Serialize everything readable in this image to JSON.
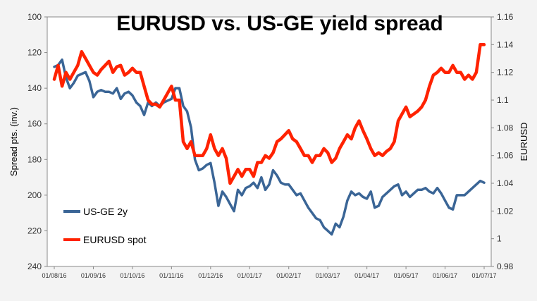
{
  "chart_data": {
    "type": "line",
    "title": "EURUSD vs. US-GE yield spread",
    "ylabel_left": "Spread pts. (inv.)",
    "ylabel_right": "EURUSD",
    "xlabel": "",
    "y_left_range": [
      100,
      240
    ],
    "y_left_inverted": true,
    "y_left_ticks": [
      "100",
      "120",
      "140",
      "160",
      "180",
      "200",
      "220",
      "240"
    ],
    "y_right_range": [
      0.98,
      1.16
    ],
    "y_right_ticks": [
      "0.98",
      "1",
      "1.02",
      "1.04",
      "1.06",
      "1.08",
      "1.1",
      "1.12",
      "1.14",
      "1.16"
    ],
    "x_ticks": [
      "01/08/16",
      "01/09/16",
      "01/10/16",
      "01/11/16",
      "01/12/16",
      "01/01/17",
      "01/02/17",
      "01/03/17",
      "01/04/17",
      "01/05/17",
      "01/06/17",
      "01/07/17"
    ],
    "grid": false,
    "legend_position": "bottom-left",
    "series": [
      {
        "name": "US-GE 2y",
        "axis": "left",
        "color": "#3a6596",
        "x": [
          0,
          0.1,
          0.2,
          0.3,
          0.4,
          0.5,
          0.6,
          0.7,
          0.8,
          0.9,
          1.0,
          1.1,
          1.2,
          1.3,
          1.4,
          1.5,
          1.6,
          1.7,
          1.8,
          1.9,
          2.0,
          2.1,
          2.2,
          2.3,
          2.4,
          2.5,
          2.6,
          2.7,
          2.8,
          2.9,
          3.0,
          3.1,
          3.2,
          3.3,
          3.4,
          3.5,
          3.6,
          3.7,
          3.8,
          3.9,
          4.0,
          4.1,
          4.2,
          4.3,
          4.4,
          4.5,
          4.6,
          4.7,
          4.8,
          4.9,
          5.0,
          5.1,
          5.2,
          5.3,
          5.4,
          5.5,
          5.6,
          5.7,
          5.8,
          5.9,
          6.0,
          6.1,
          6.2,
          6.3,
          6.4,
          6.5,
          6.6,
          6.7,
          6.8,
          6.9,
          7.0,
          7.1,
          7.2,
          7.3,
          7.4,
          7.5,
          7.6,
          7.7,
          7.8,
          7.9,
          8.0,
          8.1,
          8.2,
          8.3,
          8.4,
          8.5,
          8.6,
          8.7,
          8.8,
          8.9,
          9.0,
          9.1,
          9.2,
          9.3,
          9.4,
          9.5,
          9.6,
          9.7,
          9.8,
          9.9,
          10.0,
          10.1,
          10.2,
          10.3,
          10.4,
          10.5,
          10.6,
          10.7,
          10.8,
          10.9,
          11.0
        ],
        "values": [
          128,
          127,
          124,
          134,
          140,
          137,
          133,
          132,
          131,
          136,
          145,
          142,
          141,
          142,
          142,
          143,
          140,
          146,
          143,
          142,
          144,
          148,
          150,
          155,
          148,
          150,
          148,
          150,
          148,
          147,
          146,
          140,
          140,
          150,
          153,
          162,
          180,
          186,
          185,
          183,
          182,
          193,
          206,
          198,
          201,
          205,
          209,
          197,
          200,
          196,
          195,
          193,
          196,
          190,
          197,
          194,
          186,
          189,
          193,
          194,
          194,
          197,
          200,
          199,
          203,
          207,
          210,
          213,
          214,
          218,
          220,
          222,
          216,
          218,
          212,
          203,
          198,
          200,
          199,
          201,
          202,
          198,
          207,
          206,
          201,
          199,
          197,
          195,
          194,
          200,
          198,
          201,
          199,
          197,
          197,
          196,
          198,
          199,
          196,
          199,
          203,
          207,
          208,
          200,
          200,
          200,
          198,
          196,
          194,
          192,
          193
        ]
      },
      {
        "name": "EURUSD spot",
        "axis": "right",
        "color": "#ff2200",
        "x": [
          0,
          0.1,
          0.2,
          0.3,
          0.4,
          0.5,
          0.6,
          0.7,
          0.8,
          0.9,
          1.0,
          1.1,
          1.2,
          1.3,
          1.4,
          1.5,
          1.6,
          1.7,
          1.8,
          1.9,
          2.0,
          2.1,
          2.2,
          2.3,
          2.4,
          2.5,
          2.6,
          2.7,
          2.8,
          2.9,
          3.0,
          3.1,
          3.2,
          3.3,
          3.4,
          3.5,
          3.6,
          3.7,
          3.8,
          3.9,
          4.0,
          4.1,
          4.2,
          4.3,
          4.4,
          4.5,
          4.6,
          4.7,
          4.8,
          4.9,
          5.0,
          5.1,
          5.2,
          5.3,
          5.4,
          5.5,
          5.6,
          5.7,
          5.8,
          5.9,
          6.0,
          6.1,
          6.2,
          6.3,
          6.4,
          6.5,
          6.6,
          6.7,
          6.8,
          6.9,
          7.0,
          7.1,
          7.2,
          7.3,
          7.4,
          7.5,
          7.6,
          7.7,
          7.8,
          7.9,
          8.0,
          8.1,
          8.2,
          8.3,
          8.4,
          8.5,
          8.6,
          8.7,
          8.8,
          8.9,
          9.0,
          9.1,
          9.2,
          9.3,
          9.4,
          9.5,
          9.6,
          9.7,
          9.8,
          9.9,
          10.0,
          10.1,
          10.2,
          10.3,
          10.4,
          10.5,
          10.6,
          10.7,
          10.8,
          10.9,
          11.0
        ],
        "values": [
          1.115,
          1.125,
          1.11,
          1.12,
          1.115,
          1.12,
          1.125,
          1.135,
          1.13,
          1.125,
          1.12,
          1.118,
          1.122,
          1.125,
          1.128,
          1.12,
          1.124,
          1.125,
          1.118,
          1.12,
          1.123,
          1.12,
          1.12,
          1.11,
          1.1,
          1.097,
          1.097,
          1.095,
          1.1,
          1.105,
          1.11,
          1.1,
          1.1,
          1.07,
          1.065,
          1.07,
          1.06,
          1.06,
          1.06,
          1.065,
          1.075,
          1.065,
          1.06,
          1.065,
          1.058,
          1.04,
          1.045,
          1.05,
          1.045,
          1.05,
          1.05,
          1.045,
          1.055,
          1.055,
          1.06,
          1.058,
          1.062,
          1.07,
          1.072,
          1.075,
          1.078,
          1.072,
          1.07,
          1.065,
          1.06,
          1.06,
          1.055,
          1.06,
          1.06,
          1.065,
          1.062,
          1.055,
          1.058,
          1.065,
          1.07,
          1.075,
          1.072,
          1.08,
          1.085,
          1.078,
          1.072,
          1.065,
          1.06,
          1.062,
          1.06,
          1.063,
          1.065,
          1.07,
          1.085,
          1.09,
          1.095,
          1.088,
          1.09,
          1.092,
          1.095,
          1.1,
          1.11,
          1.118,
          1.12,
          1.123,
          1.12,
          1.12,
          1.125,
          1.12,
          1.12,
          1.115,
          1.118,
          1.115,
          1.12,
          1.14,
          1.14
        ]
      }
    ]
  }
}
